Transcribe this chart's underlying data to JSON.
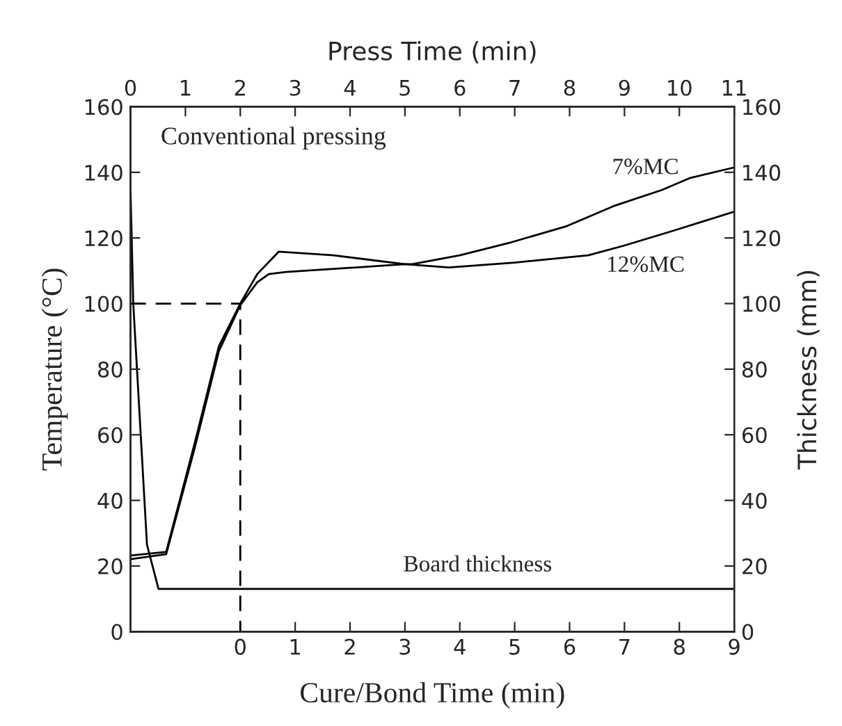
{
  "chart_data": {
    "type": "line",
    "xlabel": "Cure/Bond Time (min)",
    "x2label": "Press Time (min)",
    "ylabel": "Temperature (°C)",
    "y2label": "Thickness (mm)",
    "xlim": [
      -2,
      9
    ],
    "xticks": [
      0,
      1,
      2,
      3,
      4,
      5,
      6,
      7,
      8,
      9
    ],
    "x2lim": [
      0,
      11
    ],
    "x2ticks": [
      0,
      1,
      2,
      3,
      4,
      5,
      6,
      7,
      8,
      9,
      10,
      11
    ],
    "ylim": [
      0,
      160
    ],
    "yticks": [
      0,
      20,
      40,
      60,
      80,
      100,
      120,
      140,
      160
    ],
    "y2lim": [
      0,
      160
    ],
    "y2ticks": [
      0,
      20,
      40,
      60,
      80,
      100,
      120,
      140,
      160
    ],
    "grid": false,
    "legend": false,
    "marker": "none",
    "series": [
      {
        "name": "7%MC",
        "color": "#000000",
        "x": [
          -2,
          -1.35,
          -0.83,
          -0.39,
          0,
          0.31,
          0.7,
          1.7,
          3.0,
          3.13,
          4.0,
          4.88,
          5.93,
          6.8,
          7.68,
          8.2,
          9
        ],
        "values": [
          23.2,
          24.3,
          57.5,
          87,
          100,
          109,
          115.8,
          114.7,
          112,
          112,
          114.7,
          118.4,
          123.5,
          129.7,
          134.6,
          138.3,
          141.5
        ]
      },
      {
        "name": "12%MC",
        "color": "#000000",
        "x": [
          -2,
          -1.35,
          -0.83,
          -0.39,
          0,
          0.31,
          0.52,
          0.83,
          3.0,
          3.8,
          5.0,
          6.34,
          6.98,
          7.85,
          9
        ],
        "values": [
          22.1,
          23.6,
          56,
          85.5,
          99.5,
          106.5,
          109,
          109.6,
          112,
          111,
          112.5,
          114.7,
          117.6,
          122,
          128
        ]
      },
      {
        "name": "Board thickness",
        "color": "#000000",
        "axis": "y2",
        "x": [
          -2,
          -1.95,
          -1.7,
          -1.49,
          9
        ],
        "values": [
          135,
          100,
          26.5,
          13,
          13
        ]
      },
      {
        "color": "#000000",
        "line_style": "dashed",
        "x": [
          -2,
          0,
          0
        ],
        "values": [
          100,
          100,
          0
        ]
      }
    ],
    "annotations": [
      "Conventional pressing"
    ]
  }
}
